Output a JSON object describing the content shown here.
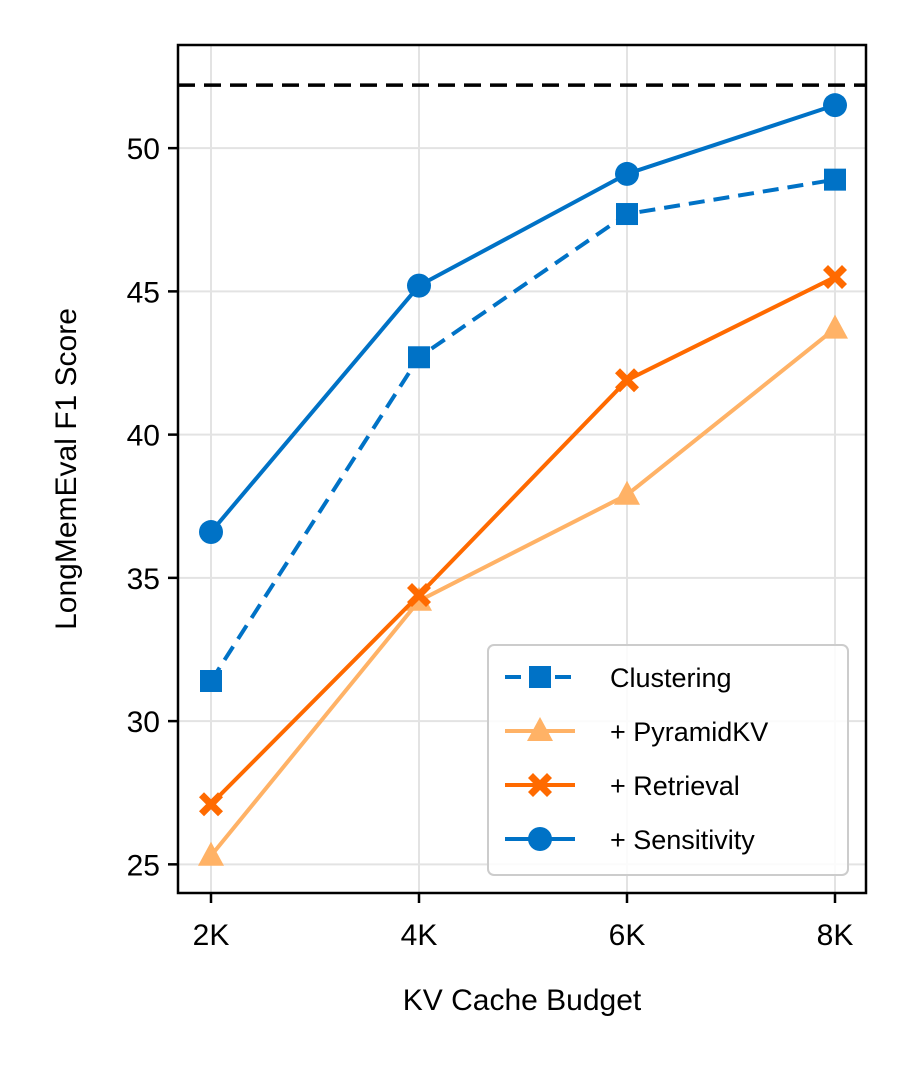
{
  "chart_data": {
    "type": "line",
    "title": "",
    "xlabel": "KV Cache Budget",
    "ylabel": "LongMemEval F1 Score",
    "categories": [
      "2K",
      "4K",
      "6K",
      "8K"
    ],
    "ylim": [
      24,
      53.6
    ],
    "yticks": [
      25,
      30,
      35,
      40,
      45,
      50
    ],
    "grid": true,
    "reference_line": {
      "y": 52.2,
      "style": "dashed",
      "color": "#000000"
    },
    "legend_position": "lower-right",
    "series": [
      {
        "name": "Clustering",
        "values": [
          31.4,
          42.7,
          47.7,
          48.9
        ],
        "color": "#0072C6",
        "marker": "square",
        "linestyle": "dashed"
      },
      {
        "name": "+ PyramidKV",
        "values": [
          25.3,
          34.2,
          37.9,
          43.7
        ],
        "color": "#FFB266",
        "marker": "triangle",
        "linestyle": "solid"
      },
      {
        "name": "+ Retrieval",
        "values": [
          27.1,
          34.4,
          41.9,
          45.5
        ],
        "color": "#FF6A00",
        "marker": "x-filled",
        "linestyle": "solid"
      },
      {
        "name": "+ Sensitivity",
        "values": [
          36.6,
          45.2,
          49.1,
          51.5
        ],
        "color": "#0072C6",
        "marker": "circle",
        "linestyle": "solid"
      }
    ]
  }
}
